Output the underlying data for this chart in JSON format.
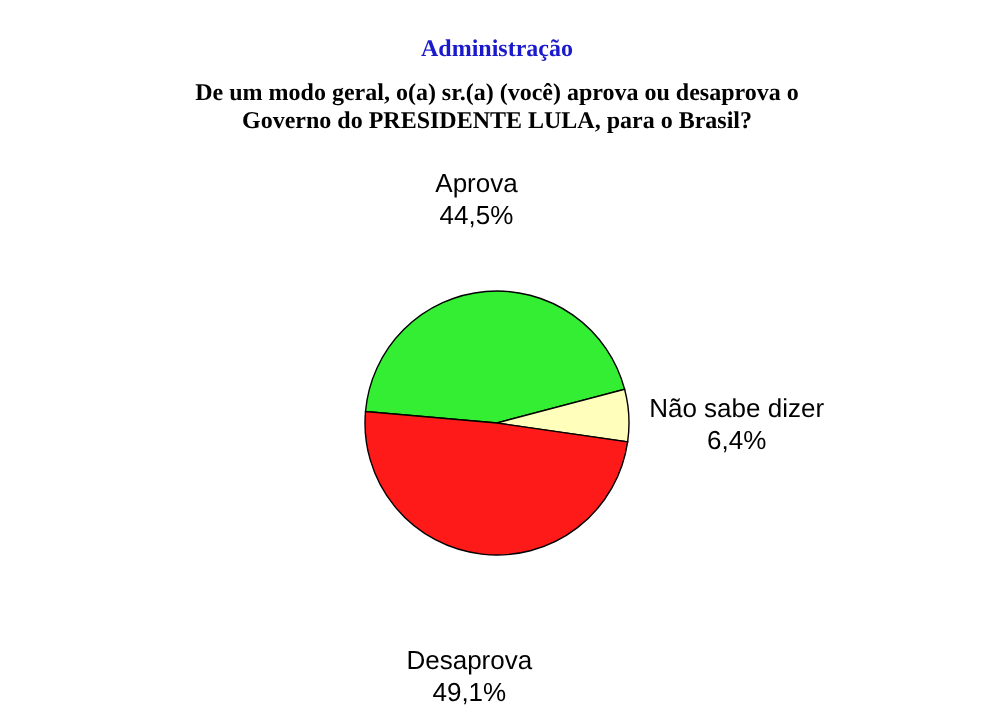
{
  "chart_data": {
    "type": "pie",
    "title": "Administração",
    "subtitle": "De um modo geral, o(a) sr.(a) (você) aprova ou desaprova o Governo do PRESIDENTE LULA, para o Brasil?",
    "categories": [
      "Aprova",
      "Não sabe dizer",
      "Desaprova"
    ],
    "values": [
      44.5,
      6.4,
      49.1
    ],
    "value_labels": [
      "44,5%",
      "6,4%",
      "49,1%"
    ],
    "colors": [
      "#33ee33",
      "#ffffbb",
      "#ff1a1a"
    ],
    "legend": false
  }
}
